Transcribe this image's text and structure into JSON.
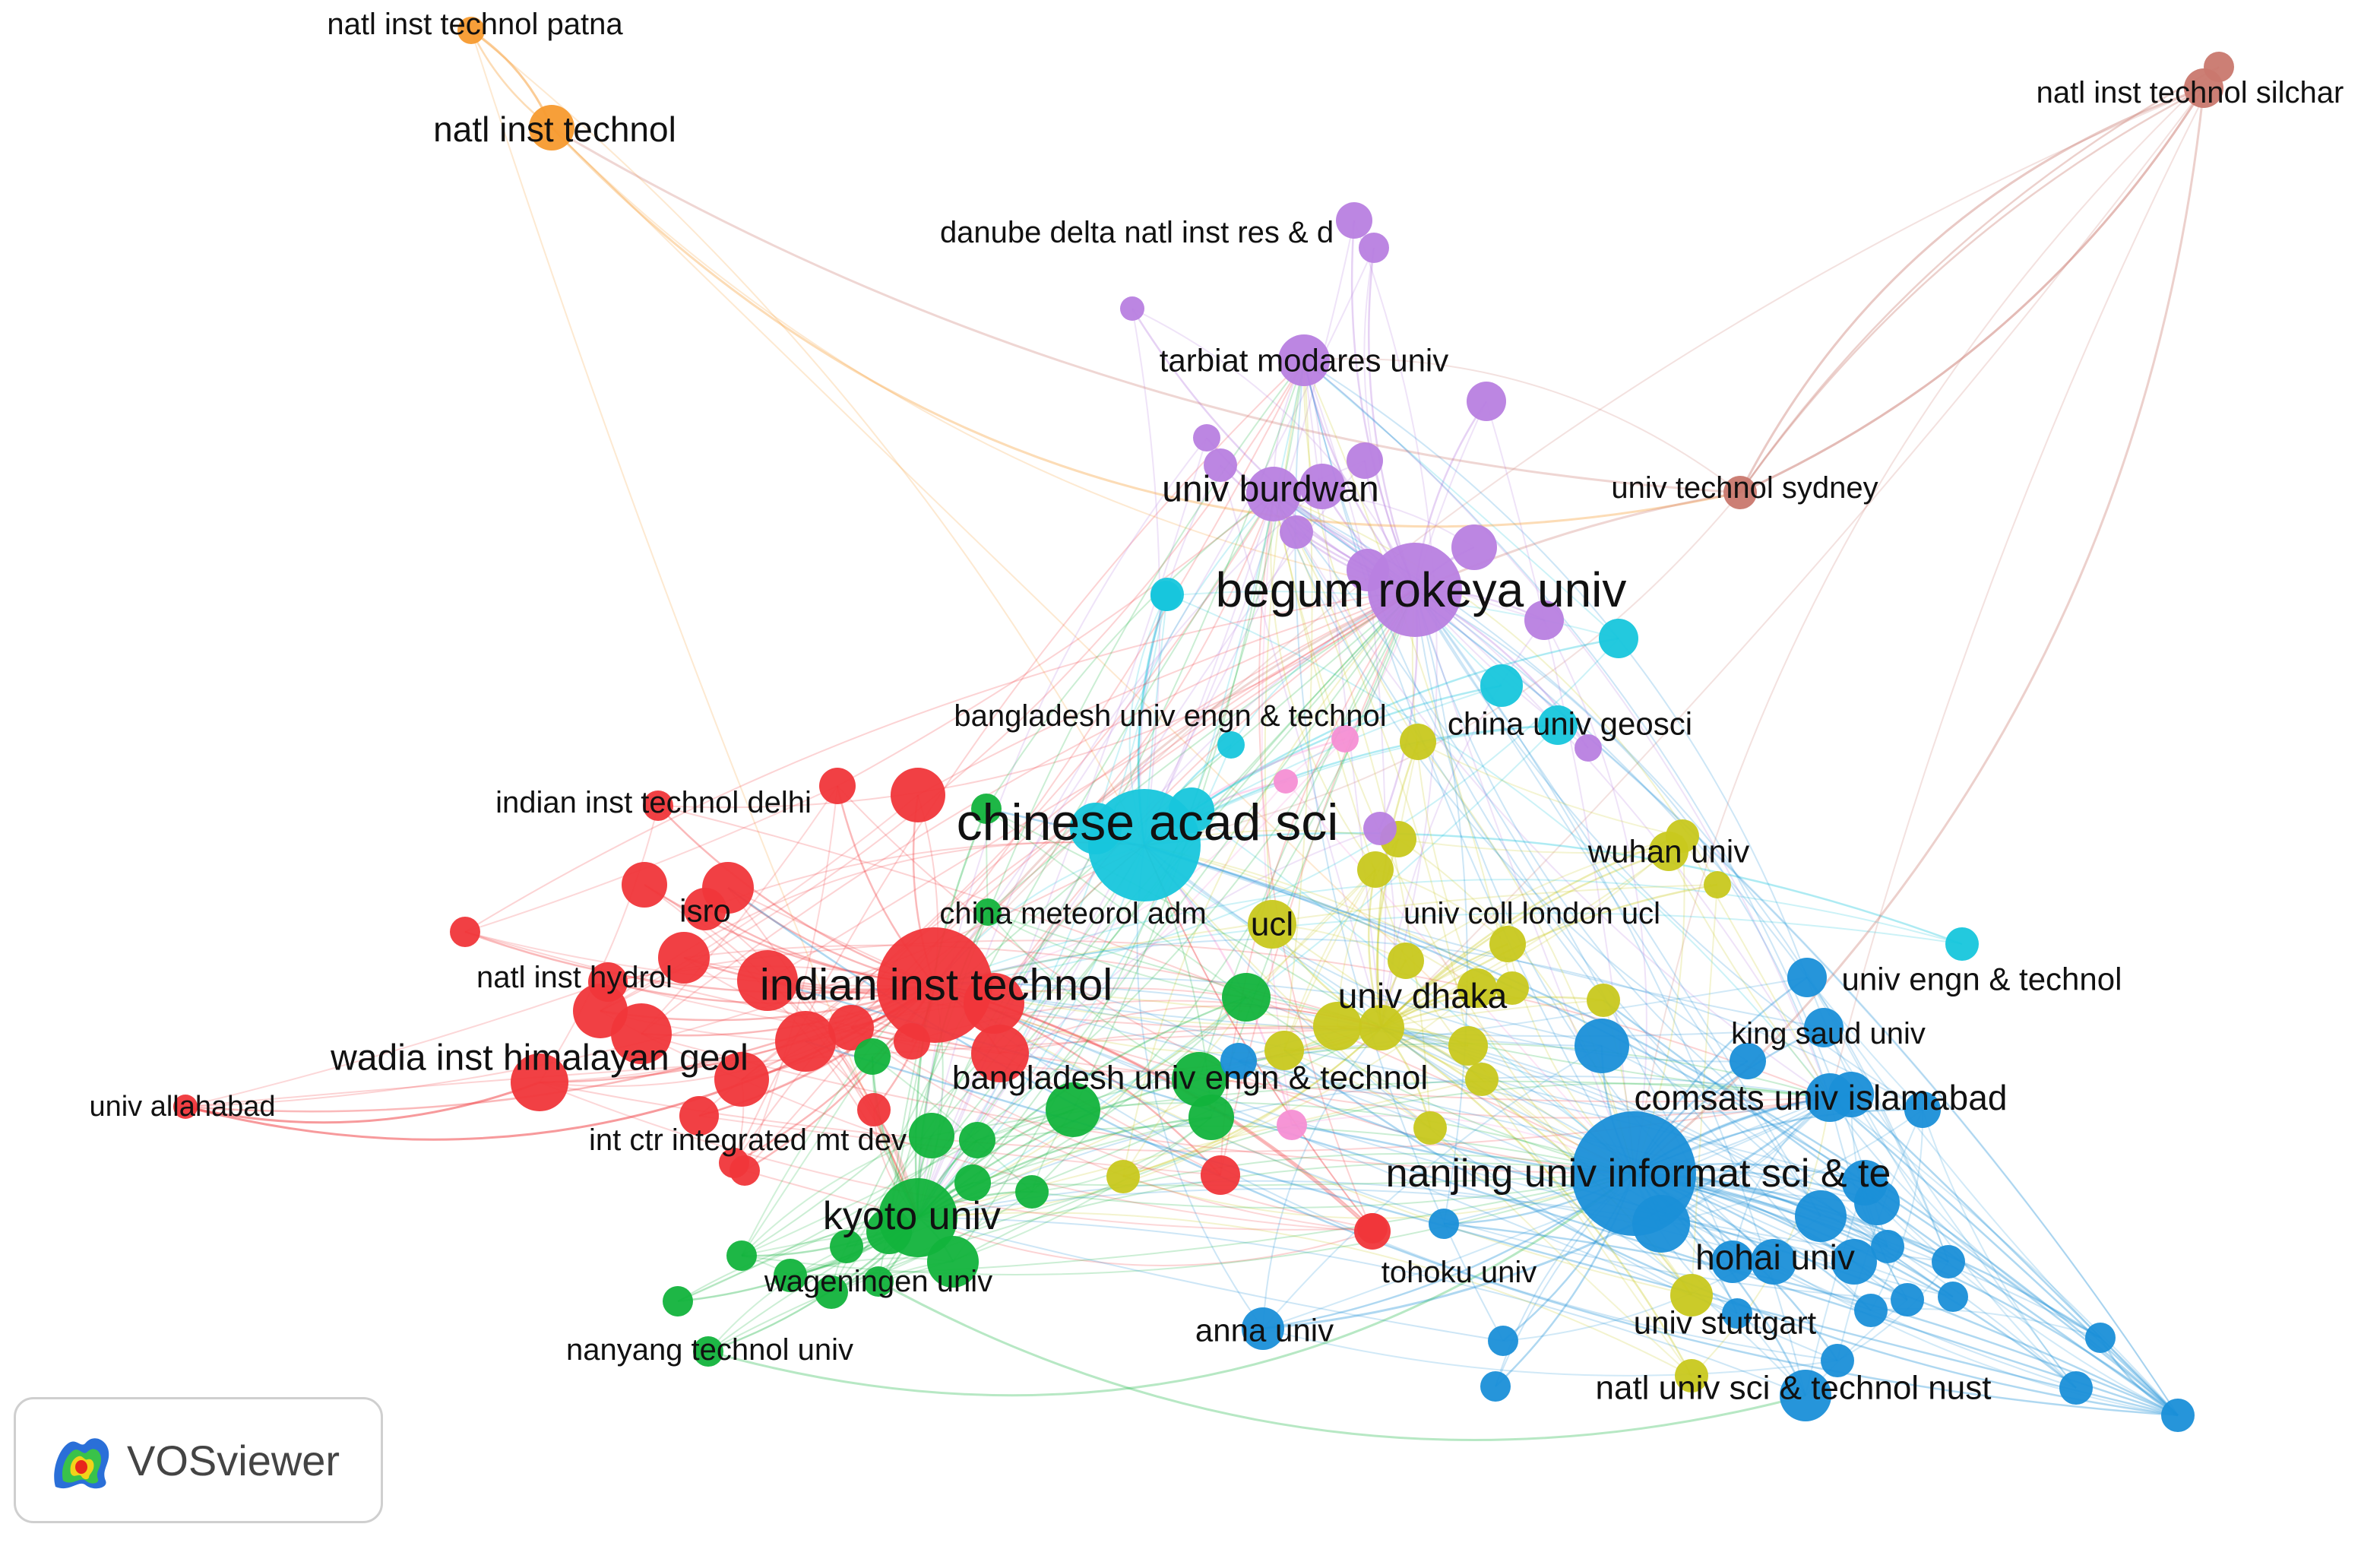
{
  "app": {
    "name": "VOSviewer"
  },
  "clusters": {
    "red": "#f0363a",
    "green": "#12b33c",
    "blue": "#1a8fd8",
    "yellow": "#c8c81e",
    "purple": "#b87fe0",
    "cyan": "#17c6dc",
    "orange": "#f79a2e",
    "brown": "#c9786e",
    "pink": "#f58fd4"
  },
  "nodes": [
    {
      "label": "natl inst technol patna",
      "cluster": "orange"
    },
    {
      "label": "natl inst technol",
      "cluster": "orange"
    },
    {
      "label": "natl inst technol silchar",
      "cluster": "brown"
    },
    {
      "label": "danube delta natl inst res & d",
      "cluster": "purple"
    },
    {
      "label": "tarbiat modares univ",
      "cluster": "purple"
    },
    {
      "label": "univ technol sydney",
      "cluster": "brown"
    },
    {
      "label": "univ burdwan",
      "cluster": "purple"
    },
    {
      "label": "begum rokeya univ",
      "cluster": "purple"
    },
    {
      "label": "bangladesh univ engn & technol",
      "cluster": "cyan"
    },
    {
      "label": "china univ geosci",
      "cluster": "cyan"
    },
    {
      "label": "indian inst technol delhi",
      "cluster": "red"
    },
    {
      "label": "chinese acad sci",
      "cluster": "cyan"
    },
    {
      "label": "wuhan univ",
      "cluster": "yellow"
    },
    {
      "label": "isro",
      "cluster": "red"
    },
    {
      "label": "china meteorol adm",
      "cluster": "green"
    },
    {
      "label": "ucl",
      "cluster": "yellow"
    },
    {
      "label": "univ coll london ucl",
      "cluster": "yellow"
    },
    {
      "label": "natl inst hydrol",
      "cluster": "red"
    },
    {
      "label": "indian inst technol",
      "cluster": "red"
    },
    {
      "label": "univ engn & technol",
      "cluster": "blue"
    },
    {
      "label": "univ dhaka",
      "cluster": "yellow"
    },
    {
      "label": "king saud univ",
      "cluster": "blue"
    },
    {
      "label": "wadia inst himalayan geol",
      "cluster": "red"
    },
    {
      "label": "bangladesh univ engn & technol",
      "cluster": "green"
    },
    {
      "label": "comsats univ islamabad",
      "cluster": "blue"
    },
    {
      "label": "univ allahabad",
      "cluster": "red"
    },
    {
      "label": "int ctr integrated mt dev",
      "cluster": "red"
    },
    {
      "label": "nanjing univ informat sci & te",
      "cluster": "blue"
    },
    {
      "label": "kyoto univ",
      "cluster": "green"
    },
    {
      "label": "hohai univ",
      "cluster": "blue"
    },
    {
      "label": "tohoku univ",
      "cluster": "red"
    },
    {
      "label": "wageningen univ",
      "cluster": "green"
    },
    {
      "label": "univ stuttgart",
      "cluster": "yellow"
    },
    {
      "label": "anna univ",
      "cluster": "blue"
    },
    {
      "label": "nanyang technol univ",
      "cluster": "green"
    },
    {
      "label": "natl univ sci & technol nust",
      "cluster": "blue"
    }
  ]
}
